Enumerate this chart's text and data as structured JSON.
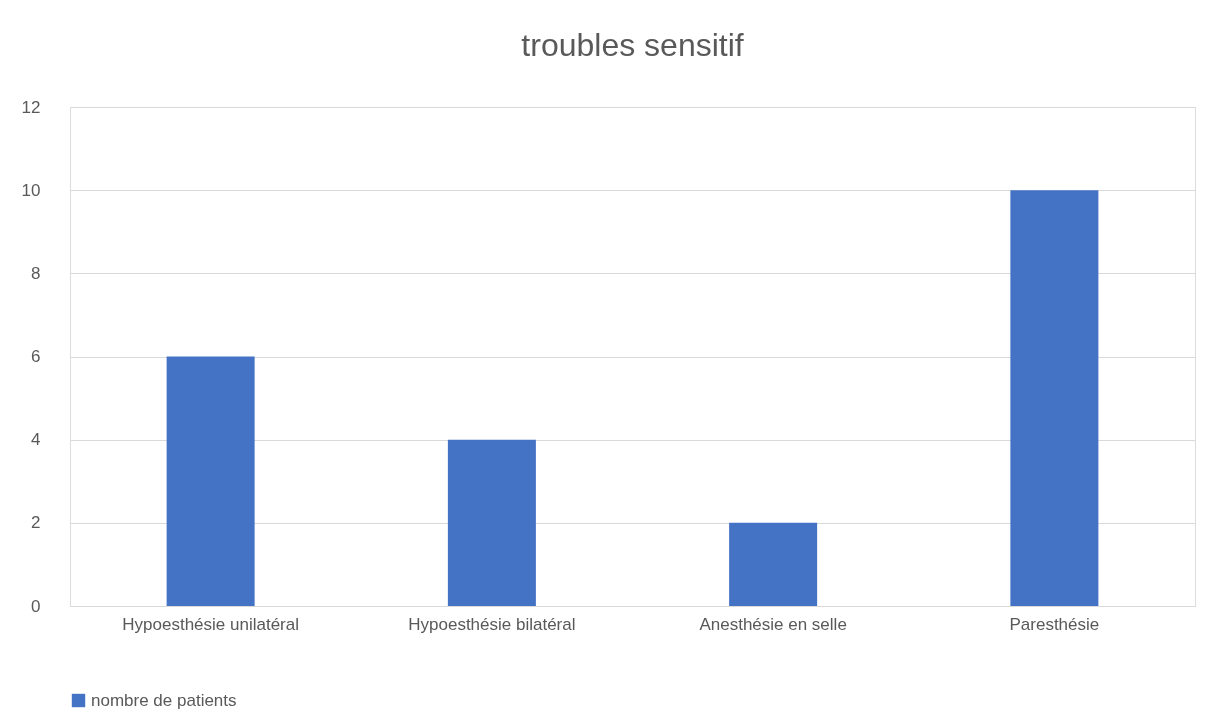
{
  "chart_data": {
    "type": "bar",
    "title": "troubles sensitif",
    "categories": [
      "Hypoesthésie unilatéral",
      "Hypoesthésie bilatéral",
      "Anesthésie en selle",
      "Paresthésie"
    ],
    "series": [
      {
        "name": "nombre de patients",
        "color": "#4472c4",
        "values": [
          6,
          4,
          2,
          10
        ]
      }
    ],
    "ylim": [
      0,
      12
    ],
    "yticks": [
      0,
      2,
      4,
      6,
      8,
      10,
      12
    ],
    "grid": "y",
    "legend": "bottom"
  }
}
